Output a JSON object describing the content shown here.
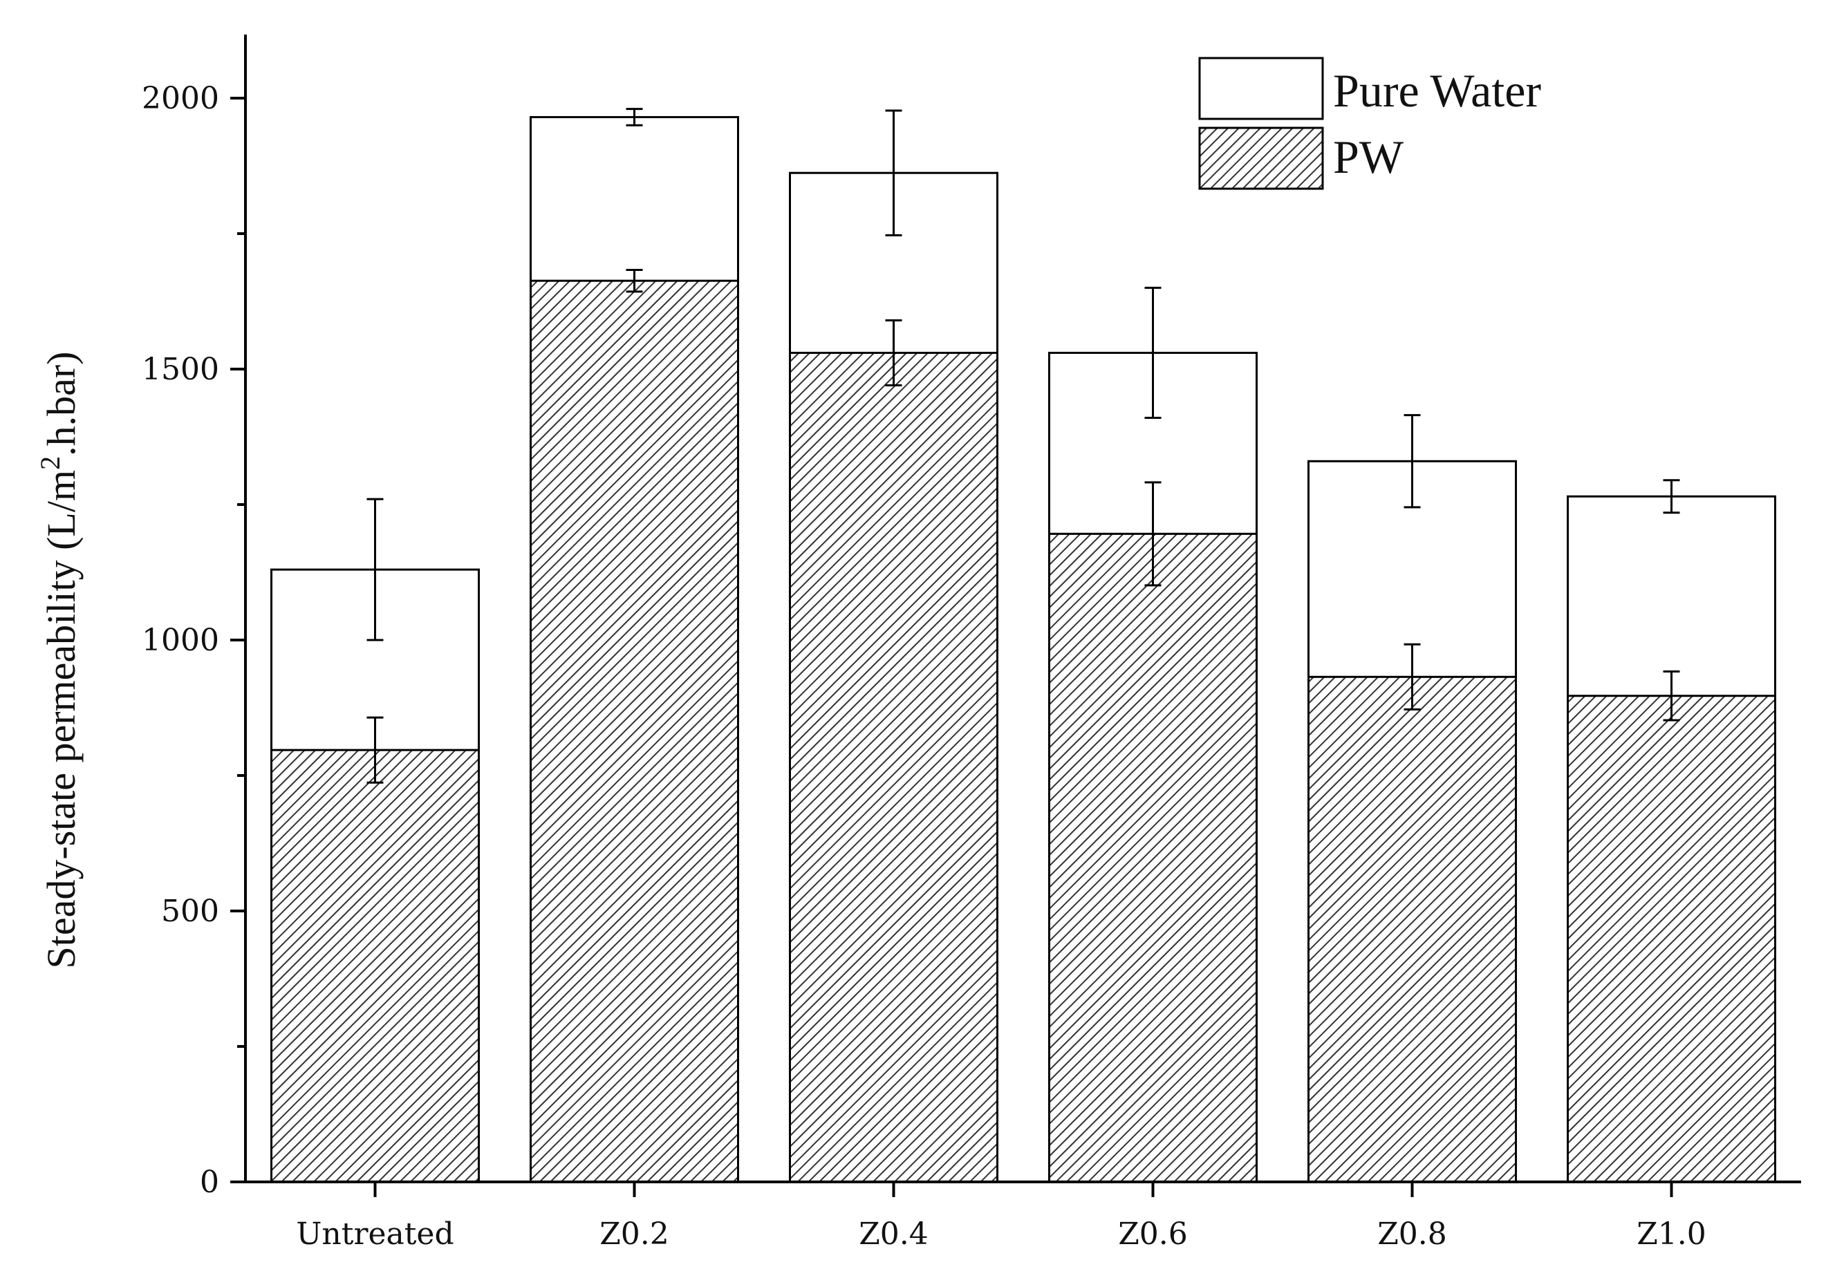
{
  "chart_data": {
    "type": "bar",
    "stacking": "overlay",
    "title": "",
    "xlabel": "",
    "ylabel": "Steady-state permeability (L/m2.h.bar)",
    "ylabel_parts": {
      "prefix": "Steady-state permeability (L/m",
      "sup": "2",
      "suffix": ".h.bar)"
    },
    "ylim": [
      0,
      2130
    ],
    "yticks": [
      0,
      500,
      1000,
      1500,
      2000
    ],
    "categories": [
      "Untreated",
      "Z0.2",
      "Z0.4",
      "Z0.6",
      "Z0.8",
      "Z1.0"
    ],
    "series": [
      {
        "name": "Pure Water",
        "fill": "white",
        "values": [
          1130,
          1965,
          1862,
          1530,
          1330,
          1265
        ],
        "errors": [
          130,
          15,
          115,
          120,
          85,
          30
        ]
      },
      {
        "name": "PW",
        "fill": "hatch",
        "values": [
          797,
          1663,
          1530,
          1196,
          932,
          897
        ],
        "errors": [
          60,
          20,
          60,
          95,
          60,
          45
        ]
      }
    ],
    "legend": {
      "position": "top-right",
      "entries": [
        {
          "label": "Pure Water",
          "fill": "white"
        },
        {
          "label": "PW",
          "fill": "hatch"
        }
      ]
    },
    "colors": {
      "stroke": "#000000",
      "hatch": "#333333",
      "background": "#ffffff"
    }
  }
}
